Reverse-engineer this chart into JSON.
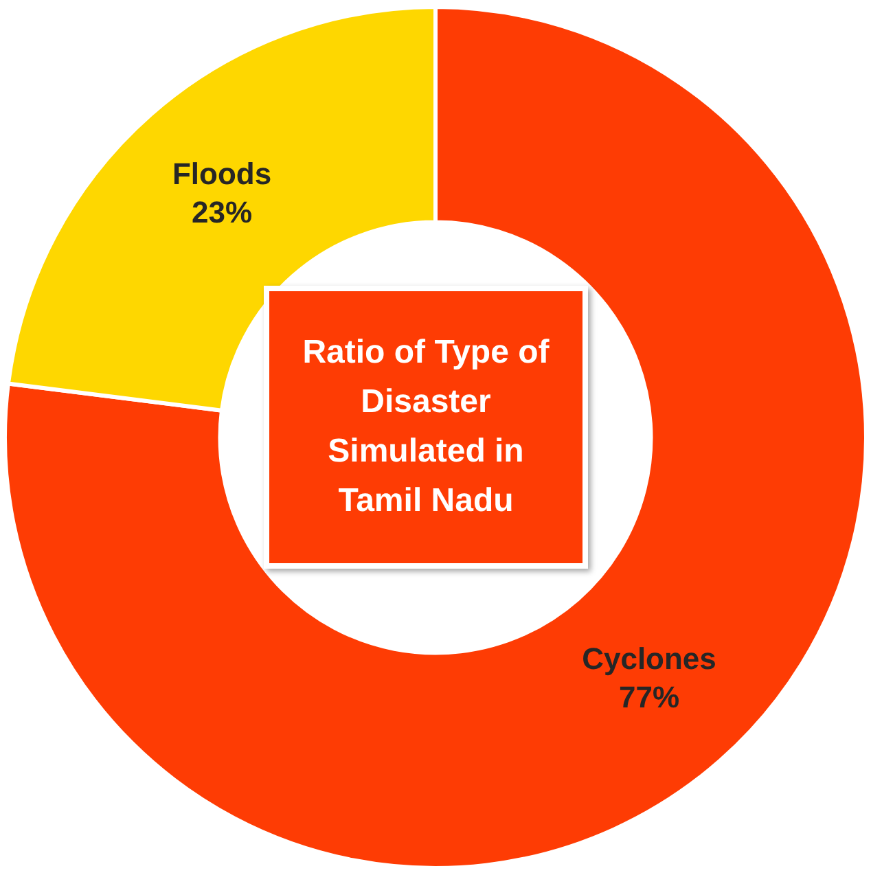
{
  "chart_data": {
    "type": "donut",
    "title": "Ratio of Type of Disaster Simulated in Tamil Nadu",
    "categories": [
      "Cyclones",
      "Floods"
    ],
    "values": [
      77,
      23
    ],
    "colors": [
      "#fe3c04",
      "#fed700"
    ],
    "value_labels": [
      "77%",
      "23%"
    ],
    "legend": false
  }
}
